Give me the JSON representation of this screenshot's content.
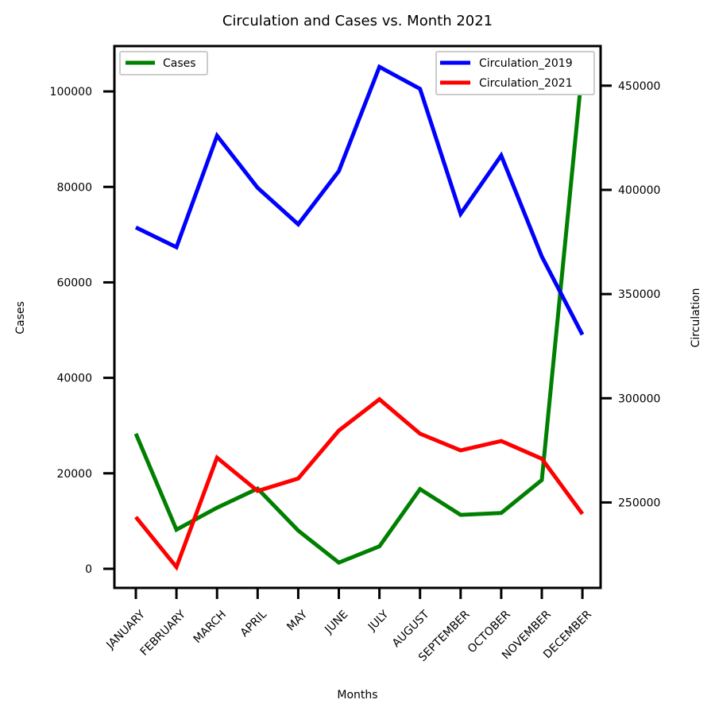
{
  "chart_data": {
    "type": "line",
    "title": "Circulation and Cases vs. Month 2021",
    "xlabel": "Months",
    "ylabel_left": "Cases",
    "ylabel_right": "Circulation",
    "categories": [
      "JANUARY",
      "FEBRUARY",
      "MARCH",
      "APRIL",
      "MAY",
      "JUNE",
      "JULY",
      "AUGUST",
      "SEPTEMBER",
      "OCTOBER",
      "NOVEMBER",
      "DECEMBER"
    ],
    "left_axis": {
      "ylim": [
        -4000,
        109500
      ],
      "ticks": [
        0,
        20000,
        40000,
        60000,
        80000,
        100000
      ]
    },
    "right_axis": {
      "ylim": [
        209000,
        469000
      ],
      "ticks": [
        250000,
        300000,
        350000,
        400000,
        450000
      ]
    },
    "series": [
      {
        "name": "Cases",
        "axis": "left",
        "color": "#008000",
        "values": [
          28300,
          8200,
          12800,
          16800,
          8000,
          1300,
          4700,
          16700,
          11300,
          11700,
          18600,
          105000
        ]
      },
      {
        "name": "Circulation_2019",
        "axis": "right",
        "color": "#0000ff",
        "values": [
          382000,
          372500,
          426000,
          401000,
          383500,
          409000,
          459000,
          448500,
          388500,
          416500,
          368000,
          330500
        ]
      },
      {
        "name": "Circulation_2021",
        "axis": "right",
        "color": "#ff0000",
        "values": [
          243000,
          219000,
          271500,
          255500,
          261500,
          284500,
          299500,
          283000,
          275000,
          279500,
          271000,
          244500
        ]
      }
    ],
    "legends": {
      "left": "upper-left",
      "right": "upper-right"
    },
    "label_colors": {
      "left": "#008000",
      "right": "#0000ff"
    },
    "grid": false
  }
}
